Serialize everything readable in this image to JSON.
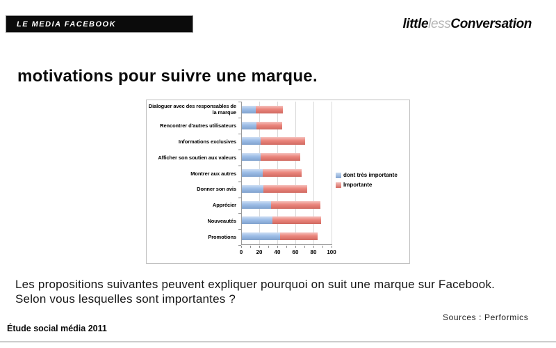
{
  "header": {
    "badge": "LE MEDIA FACEBOOK"
  },
  "logo": {
    "part1": "little",
    "part2": "less",
    "part3": "Conversation"
  },
  "title": "motivations pour suivre une marque.",
  "chart_data": {
    "type": "bar",
    "orientation": "horizontal",
    "stacked": true,
    "title": "",
    "xlabel": "",
    "ylabel": "",
    "xlim": [
      0,
      100
    ],
    "xticks": [
      0,
      20,
      40,
      60,
      80,
      100
    ],
    "grid": true,
    "legend_position": "right",
    "categories": [
      "Dialoguer avec des responsables de la marque",
      "Rencontrer d'autres utilisateurs",
      "Informations exclusives",
      "Afficher son soutien aux valeurs",
      "Montrer aux autres",
      "Donner son avis",
      "Apprécier",
      "Nouveautés",
      "Promotions"
    ],
    "series": [
      {
        "name": "dont très importante",
        "color": "#8FB4E4",
        "values": [
          15,
          16,
          21,
          21,
          23,
          24,
          32,
          34,
          42
        ]
      },
      {
        "name": "Importante",
        "color": "#E8756B",
        "values": [
          30,
          29,
          49,
          44,
          43,
          48,
          55,
          54,
          42
        ]
      }
    ],
    "stacked_totals": [
      45,
      45,
      70,
      65,
      66,
      72,
      87,
      88,
      84
    ]
  },
  "caption": {
    "line1": "Les propositions suivantes peuvent expliquer pourquoi on suit une marque sur Facebook.",
    "line2": "Selon vous lesquelles sont importantes ?"
  },
  "source": "Sources : Performics",
  "footer": "Étude social média 2011",
  "colors": {
    "bar_blue": "#8FB4E4",
    "bar_red": "#E8756B",
    "gridline": "#D9D9D9",
    "axis": "#999999",
    "frame_border": "#C0C0C0"
  }
}
